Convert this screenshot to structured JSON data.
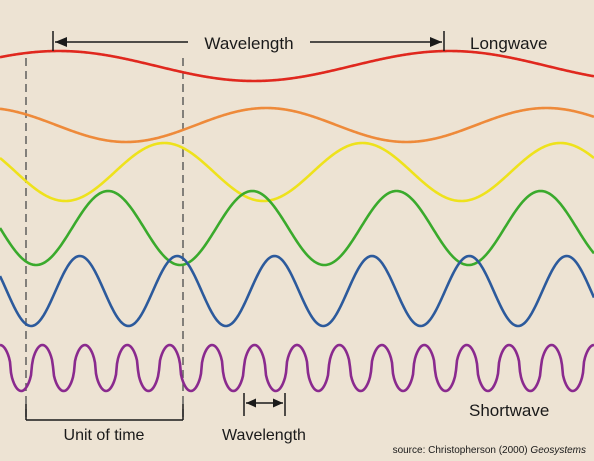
{
  "labels": {
    "wavelength_top": "Wavelength",
    "longwave": "Longwave",
    "shortwave": "Shortwave",
    "unit_of_time": "Unit of time",
    "wavelength_bottom": "Wavelength"
  },
  "source": {
    "prefix": "source: Christopherson (2000) ",
    "title": "Geosystems"
  },
  "waves": [
    {
      "color": "#e0281e",
      "cycles_per_width": 1.52
    },
    {
      "color": "#ee8a3a",
      "cycles_per_width": 2.12
    },
    {
      "color": "#eee21c",
      "cycles_per_width": 3.0
    },
    {
      "color": "#3aaa2c",
      "cycles_per_width": 4.12
    },
    {
      "color": "#2c5a9c",
      "cycles_per_width": 6.1
    },
    {
      "color": "#8a2a8e",
      "cycles_per_width": 14.0
    }
  ],
  "colors": {
    "background": "#ede3d3",
    "text": "#1a1a1a",
    "dashed": "#555555"
  }
}
